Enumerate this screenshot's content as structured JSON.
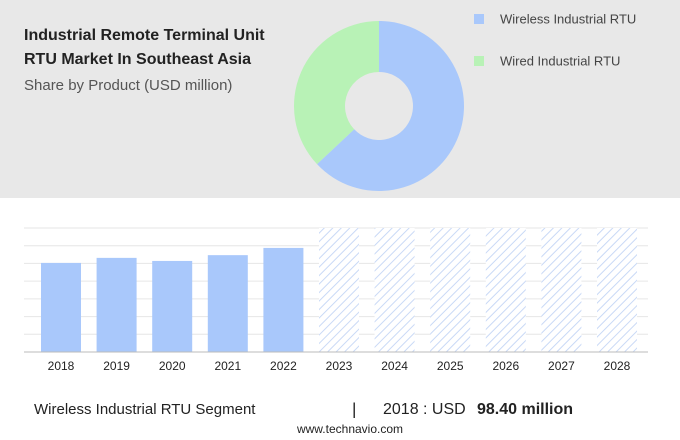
{
  "chart_data": [
    {
      "type": "pie",
      "title": "Industrial Remote Terminal Unit RTU Market In Southeast Asia",
      "subtitle": "Share by Product (USD million)",
      "categories": [
        "Wireless Industrial RTU",
        "Wired Industrial RTU"
      ],
      "values": [
        63,
        37
      ],
      "colors": [
        "#a9c8fb",
        "#b8f2b6"
      ],
      "hole": 0.4
    },
    {
      "type": "bar",
      "categories": [
        "2018",
        "2019",
        "2020",
        "2021",
        "2022",
        "2023",
        "2024",
        "2025",
        "2026",
        "2027",
        "2028"
      ],
      "values": [
        98.4,
        104,
        100.6,
        107,
        115,
        null,
        null,
        null,
        null,
        null,
        null
      ],
      "color": "#a9c8fb",
      "ylim": [
        0,
        137
      ]
    }
  ],
  "footer": {
    "segment": "Wireless Industrial RTU Segment",
    "separator": "|",
    "year": "2018 : USD",
    "value": "98.40 million",
    "source": "www.technavio.com"
  }
}
